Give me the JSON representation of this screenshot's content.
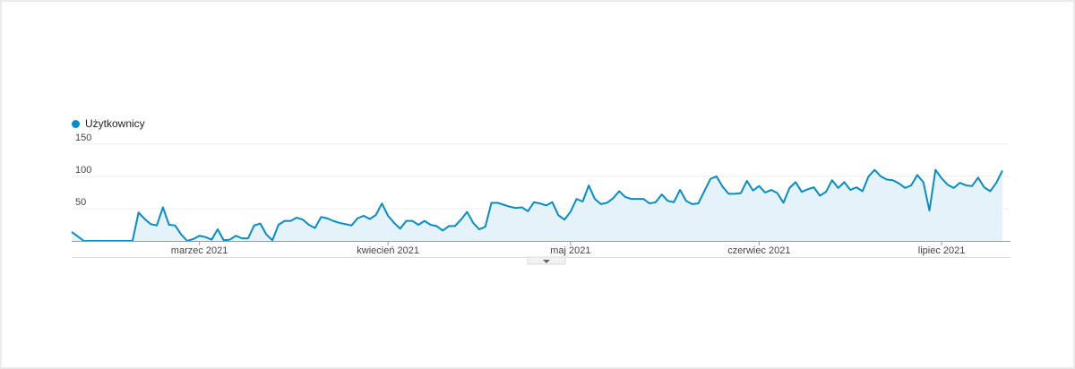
{
  "chart_data": {
    "type": "area",
    "title": "",
    "xlabel": "",
    "ylabel": "",
    "legend": {
      "position": "top-left"
    },
    "series": [
      {
        "name": "Użytkownicy",
        "color": "#058dc7",
        "fill": "#e6f2f9",
        "values": [
          14,
          7,
          0,
          0,
          0,
          0,
          0,
          0,
          0,
          0,
          0,
          44,
          34,
          26,
          24,
          52,
          25,
          24,
          10,
          0,
          3,
          8,
          6,
          2,
          18,
          1,
          2,
          8,
          4,
          4,
          24,
          27,
          10,
          1,
          25,
          31,
          31,
          36,
          33,
          25,
          20,
          37,
          35,
          31,
          28,
          26,
          24,
          35,
          39,
          34,
          40,
          58,
          39,
          28,
          19,
          31,
          31,
          25,
          31,
          25,
          23,
          16,
          23,
          23,
          33,
          45,
          28,
          18,
          22,
          59,
          59,
          56,
          53,
          51,
          52,
          46,
          60,
          58,
          55,
          60,
          40,
          33,
          45,
          65,
          61,
          86,
          65,
          57,
          59,
          66,
          77,
          68,
          65,
          65,
          65,
          58,
          60,
          72,
          62,
          60,
          79,
          62,
          57,
          58,
          77,
          96,
          100,
          84,
          73,
          73,
          74,
          93,
          78,
          85,
          75,
          79,
          74,
          59,
          82,
          91,
          76,
          80,
          83,
          70,
          76,
          94,
          82,
          91,
          79,
          83,
          77,
          100,
          110,
          100,
          95,
          94,
          89,
          82,
          86,
          102,
          91,
          47,
          110,
          97,
          87,
          82,
          90,
          86,
          85,
          98,
          83,
          77,
          90,
          109
        ]
      }
    ],
    "x_tick_labels": [
      "marzec 2021",
      "kwiecień 2021",
      "maj 2021",
      "czerwiec 2021",
      "lipiec 2021"
    ],
    "x_tick_index": [
      21,
      52,
      82,
      113,
      143
    ],
    "y_ticks": [
      50,
      100,
      150
    ],
    "ylim": [
      0,
      165
    ],
    "grid": true
  }
}
